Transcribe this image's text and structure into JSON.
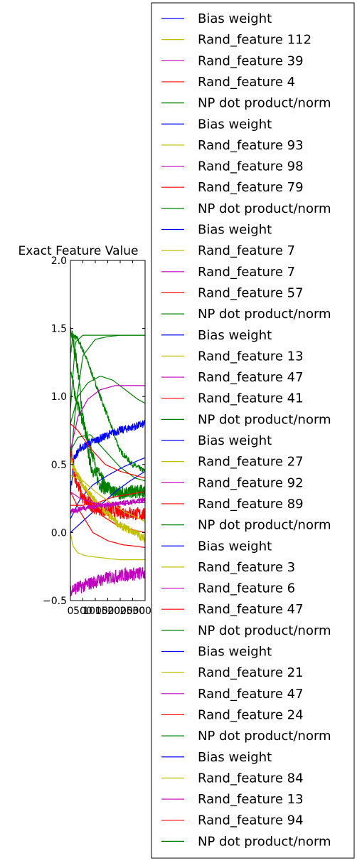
{
  "chart_data": {
    "type": "line",
    "title": "Exact Feature Value",
    "xlabel": "",
    "ylabel": "",
    "xlim": [
      0,
      3000
    ],
    "ylim": [
      -0.5,
      2.0
    ],
    "xticks": [
      "0",
      "500",
      "1000",
      "1500",
      "2000",
      "2500",
      "3000"
    ],
    "yticks": [
      "−0.5",
      "0.0",
      "0.5",
      "1.0",
      "1.5",
      "2.0"
    ],
    "legend_position": "right, outside plot",
    "colors": {
      "blue": "#0000ff",
      "yellow": "#bfbf00",
      "magenta": "#bf00bf",
      "red": "#ff0000",
      "green": "#008000"
    },
    "series": [
      {
        "name": "Bias weight",
        "color": "blue"
      },
      {
        "name": "Rand_feature 112",
        "color": "yellow"
      },
      {
        "name": "Rand_feature 39",
        "color": "magenta"
      },
      {
        "name": "Rand_feature 4",
        "color": "red"
      },
      {
        "name": "NP dot product/norm",
        "color": "green"
      },
      {
        "name": "Bias weight",
        "color": "blue"
      },
      {
        "name": "Rand_feature 93",
        "color": "yellow"
      },
      {
        "name": "Rand_feature 98",
        "color": "magenta"
      },
      {
        "name": "Rand_feature 79",
        "color": "red"
      },
      {
        "name": "NP dot product/norm",
        "color": "green"
      },
      {
        "name": "Bias weight",
        "color": "blue"
      },
      {
        "name": "Rand_feature 7",
        "color": "yellow"
      },
      {
        "name": "Rand_feature 7",
        "color": "magenta"
      },
      {
        "name": "Rand_feature 57",
        "color": "red"
      },
      {
        "name": "NP dot product/norm",
        "color": "green"
      },
      {
        "name": "Bias weight",
        "color": "blue"
      },
      {
        "name": "Rand_feature 13",
        "color": "yellow"
      },
      {
        "name": "Rand_feature 47",
        "color": "magenta"
      },
      {
        "name": "Rand_feature 41",
        "color": "red"
      },
      {
        "name": "NP dot product/norm",
        "color": "green"
      },
      {
        "name": "Bias weight",
        "color": "blue"
      },
      {
        "name": "Rand_feature 27",
        "color": "yellow"
      },
      {
        "name": "Rand_feature 92",
        "color": "magenta"
      },
      {
        "name": "Rand_feature 89",
        "color": "red"
      },
      {
        "name": "NP dot product/norm",
        "color": "green"
      },
      {
        "name": "Bias weight",
        "color": "blue"
      },
      {
        "name": "Rand_feature 3",
        "color": "yellow"
      },
      {
        "name": "Rand_feature 6",
        "color": "magenta"
      },
      {
        "name": "Rand_feature 47",
        "color": "red"
      },
      {
        "name": "NP dot product/norm",
        "color": "green"
      },
      {
        "name": "Bias weight",
        "color": "blue"
      },
      {
        "name": "Rand_feature 21",
        "color": "yellow"
      },
      {
        "name": "Rand_feature 47",
        "color": "magenta"
      },
      {
        "name": "Rand_feature 24",
        "color": "red"
      },
      {
        "name": "NP dot product/norm",
        "color": "green"
      },
      {
        "name": "Bias weight",
        "color": "blue"
      },
      {
        "name": "Rand_feature 84",
        "color": "yellow"
      },
      {
        "name": "Rand_feature 13",
        "color": "magenta"
      },
      {
        "name": "Rand_feature 94",
        "color": "red"
      },
      {
        "name": "NP dot product/norm",
        "color": "green"
      }
    ],
    "curves": [
      {
        "color": "green",
        "noise": 0.02,
        "x": [
          0,
          100,
          300,
          600,
          1000,
          1500,
          2000,
          2500,
          3000
        ],
        "y": [
          1.3,
          1.45,
          1.42,
          1.3,
          1.1,
          0.85,
          0.6,
          0.5,
          0.45
        ]
      },
      {
        "color": "green",
        "noise": 0.0,
        "x": [
          0,
          200,
          500,
          1000,
          1500,
          2000,
          2500,
          3000
        ],
        "y": [
          0.9,
          1.4,
          1.45,
          1.45,
          1.45,
          1.45,
          1.45,
          1.45
        ]
      },
      {
        "color": "green",
        "noise": 0.0,
        "x": [
          0,
          200,
          500,
          1000,
          1500,
          2000,
          2500,
          3000
        ],
        "y": [
          0.5,
          0.9,
          1.3,
          1.42,
          1.44,
          1.45,
          1.45,
          1.45
        ]
      },
      {
        "color": "green",
        "noise": 0.0,
        "x": [
          0,
          300,
          700,
          1200,
          1700,
          2200,
          2700,
          3000
        ],
        "y": [
          0.8,
          1.0,
          1.1,
          1.15,
          1.12,
          1.05,
          0.98,
          0.95
        ]
      },
      {
        "color": "green",
        "noise": 0.05,
        "x": [
          0,
          100,
          300,
          500,
          800,
          1200,
          1600,
          2000,
          2500,
          3000
        ],
        "y": [
          1.5,
          1.42,
          1.2,
          0.85,
          0.5,
          0.35,
          0.3,
          0.3,
          0.3,
          0.3
        ]
      },
      {
        "color": "green",
        "noise": 0.04,
        "x": [
          0,
          200,
          600,
          1000,
          1400,
          2000,
          2500,
          3000
        ],
        "y": [
          1.2,
          1.0,
          0.75,
          0.5,
          0.35,
          0.28,
          0.3,
          0.32
        ]
      },
      {
        "color": "green",
        "noise": 0.0,
        "x": [
          0,
          300,
          800,
          1400,
          2000,
          2600,
          3000
        ],
        "y": [
          0.6,
          0.7,
          0.72,
          0.6,
          0.48,
          0.4,
          0.38
        ]
      },
      {
        "color": "magenta",
        "noise": 0.0,
        "x": [
          0,
          300,
          700,
          1200,
          1800,
          2400,
          3000
        ],
        "y": [
          0.6,
          0.85,
          0.98,
          1.05,
          1.08,
          1.08,
          1.08
        ]
      },
      {
        "color": "blue",
        "noise": 0.03,
        "x": [
          0,
          150,
          400,
          800,
          1300,
          1800,
          2400,
          3000
        ],
        "y": [
          0.3,
          0.55,
          0.62,
          0.66,
          0.7,
          0.74,
          0.77,
          0.8
        ]
      },
      {
        "color": "blue",
        "noise": 0.0,
        "x": [
          0,
          400,
          900,
          1500,
          2100,
          2600,
          3000
        ],
        "y": [
          0.1,
          0.25,
          0.35,
          0.42,
          0.48,
          0.52,
          0.55
        ]
      },
      {
        "color": "blue",
        "noise": 0.0,
        "x": [
          0,
          600,
          1200,
          1800,
          2400,
          3000
        ],
        "y": [
          0.0,
          0.1,
          0.2,
          0.3,
          0.38,
          0.45
        ]
      },
      {
        "color": "red",
        "noise": 0.0,
        "x": [
          0,
          300,
          800,
          1400,
          2000,
          2600,
          3000
        ],
        "y": [
          0.8,
          0.75,
          0.62,
          0.5,
          0.45,
          0.42,
          0.4
        ]
      },
      {
        "color": "red",
        "noise": 0.0,
        "x": [
          0,
          300,
          800,
          1300,
          1900,
          2500,
          3000
        ],
        "y": [
          0.55,
          0.4,
          0.25,
          0.12,
          0.05,
          0.02,
          0.0
        ]
      },
      {
        "color": "red",
        "noise": 0.0,
        "x": [
          0,
          400,
          900,
          1500,
          2100,
          2600,
          3000
        ],
        "y": [
          0.3,
          0.15,
          0.0,
          -0.06,
          -0.09,
          -0.1,
          -0.11
        ]
      },
      {
        "color": "red",
        "noise": 0.05,
        "x": [
          0,
          200,
          500,
          1000,
          1500,
          2000,
          2500,
          3000
        ],
        "y": [
          0.6,
          0.4,
          0.25,
          0.18,
          0.16,
          0.15,
          0.14,
          0.13
        ]
      },
      {
        "color": "red",
        "noise": 0.0,
        "x": [
          0,
          500,
          1100,
          1700,
          2300,
          3000
        ],
        "y": [
          0.2,
          0.2,
          0.22,
          0.26,
          0.28,
          0.3
        ]
      },
      {
        "color": "yellow",
        "noise": 0.0,
        "x": [
          0,
          100,
          300,
          600,
          1000,
          1500,
          2000,
          2600,
          3000
        ],
        "y": [
          0.0,
          -0.1,
          -0.15,
          -0.17,
          -0.18,
          -0.19,
          -0.2,
          -0.2,
          -0.2
        ]
      },
      {
        "color": "yellow",
        "noise": 0.03,
        "x": [
          0,
          200,
          500,
          900,
          1400,
          2000,
          2600,
          3000
        ],
        "y": [
          0.55,
          0.45,
          0.35,
          0.25,
          0.15,
          0.05,
          0.0,
          -0.05
        ]
      },
      {
        "color": "yellow",
        "noise": 0.0,
        "x": [
          0,
          500,
          1000,
          1600,
          2200,
          2800,
          3000
        ],
        "y": [
          0.42,
          0.38,
          0.3,
          0.22,
          0.15,
          0.1,
          0.08
        ]
      },
      {
        "color": "magenta",
        "noise": 0.05,
        "x": [
          0,
          400,
          1000,
          1600,
          2200,
          2800,
          3000
        ],
        "y": [
          -0.42,
          -0.4,
          -0.36,
          -0.33,
          -0.31,
          -0.3,
          -0.3
        ]
      },
      {
        "color": "magenta",
        "noise": 0.0,
        "x": [
          0,
          400,
          900,
          1500,
          2100,
          2600,
          3000
        ],
        "y": [
          0.3,
          0.25,
          0.22,
          0.2,
          0.21,
          0.22,
          0.22
        ]
      },
      {
        "color": "magenta",
        "noise": 0.02,
        "x": [
          0,
          500,
          1200,
          1800,
          2400,
          3000
        ],
        "y": [
          0.15,
          0.18,
          0.2,
          0.21,
          0.22,
          0.24
        ]
      }
    ]
  }
}
